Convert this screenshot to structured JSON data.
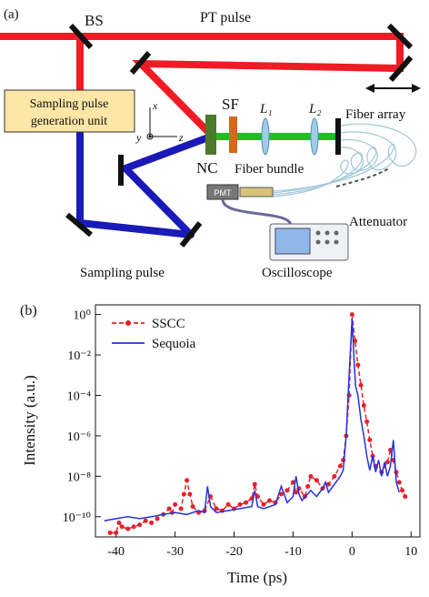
{
  "diagram": {
    "panel_label": "(a)",
    "beam_splitter": "BS",
    "pt_pulse": "PT pulse",
    "generation_unit": [
      "Sampling pulse",
      "generation unit"
    ],
    "axis_x": "x",
    "axis_y": "y",
    "axis_z": "z",
    "sf": "SF",
    "lens_1": "L₁",
    "lens_2": "L₂",
    "fiber_array": "Fiber array",
    "nc": "NC",
    "fiber_bundle": "Fiber bundle",
    "pmt": "PMT",
    "attenuator": "Attenuator",
    "oscilloscope": "Oscilloscope",
    "sampling_pulse": "Sampling pulse"
  },
  "chart_data": {
    "type": "line",
    "panel_label": "(b)",
    "x_label": "Time (ps)",
    "y_label": "Intensity (a.u.)",
    "y_scale": "log",
    "legend": "upper left",
    "xlim": [
      -43.5,
      11.5
    ],
    "xticks": [
      -40,
      -30,
      -20,
      -10,
      0,
      10
    ],
    "ylim": [
      1e-11,
      3
    ],
    "yticks": [
      {
        "value": 1,
        "label": "10⁰"
      },
      {
        "value": 0.01,
        "label": "10⁻²"
      },
      {
        "value": 0.0001,
        "label": "10⁻⁴"
      },
      {
        "value": 1e-06,
        "label": "10⁻⁶"
      },
      {
        "value": 1e-08,
        "label": "10⁻⁸"
      },
      {
        "value": 1e-10,
        "label": "10⁻¹⁰"
      }
    ],
    "series": [
      {
        "name": "SSCC",
        "color": "#e8202a",
        "line_style": "dashed",
        "marker": "circle",
        "x": [
          -41,
          -40,
          -39.5,
          -39,
          -38,
          -37,
          -36,
          -35,
          -34,
          -33,
          -32,
          -31,
          -30.5,
          -30,
          -29,
          -28.5,
          -28,
          -27.5,
          -27,
          -26,
          -25,
          -24,
          -23,
          -22,
          -21,
          -20,
          -19,
          -18,
          -17,
          -16.5,
          -16,
          -15,
          -14,
          -13,
          -12,
          -11,
          -10,
          -9.5,
          -9,
          -8,
          -7.5,
          -7,
          -6,
          -5,
          -4,
          -3,
          -2,
          -1.5,
          -1,
          -0.5,
          0,
          0.5,
          1,
          1.5,
          2,
          2.5,
          3,
          3.5,
          4,
          5,
          6,
          6.5,
          7,
          7.5,
          8,
          8.5,
          9
        ],
        "values": [
          1.6e-11,
          1.6e-11,
          5e-11,
          3.2e-11,
          2.5e-11,
          3.2e-11,
          4e-11,
          6.3e-11,
          5e-11,
          8e-11,
          1.3e-10,
          2.5e-10,
          1.6e-10,
          4e-10,
          2.5e-10,
          1.3e-09,
          6.3e-09,
          1.3e-09,
          3.2e-10,
          1.6e-10,
          2e-10,
          1e-09,
          2.5e-10,
          2e-10,
          4e-10,
          2.5e-10,
          4e-10,
          5e-10,
          8e-10,
          4e-09,
          1e-09,
          4e-10,
          6.3e-10,
          5e-10,
          1.3e-09,
          2e-09,
          5e-09,
          1.6e-09,
          2.5e-09,
          1e-09,
          3.2e-09,
          1e-08,
          6.3e-09,
          2.5e-09,
          4e-09,
          1e-08,
          3.2e-08,
          6.3e-08,
          1e-06,
          0.0001,
          1,
          0.05,
          0.0032,
          0.00032,
          3.2e-05,
          5e-06,
          6.3e-07,
          1e-07,
          3.2e-08,
          1.6e-08,
          5e-08,
          2e-07,
          6.3e-08,
          1.6e-08,
          5e-09,
          2e-09,
          1e-09
        ]
      },
      {
        "name": "Sequoia",
        "color": "#2233dd",
        "line_style": "solid",
        "x": [
          -42,
          -40,
          -38,
          -36,
          -34,
          -32,
          -30,
          -28,
          -26,
          -25,
          -24.5,
          -24,
          -23,
          -21,
          -19,
          -17,
          -16.5,
          -16,
          -15,
          -13,
          -12,
          -11,
          -10,
          -9.5,
          -9,
          -8.5,
          -7,
          -6,
          -5,
          -4.5,
          -4,
          -3,
          -2,
          -1.5,
          -1,
          -0.5,
          0,
          0.3,
          0.6,
          1,
          1.5,
          2,
          2.5,
          3,
          3.5,
          4,
          4.5,
          5,
          5.5,
          6,
          6.5,
          7,
          7.5,
          8
        ],
        "values": [
          6.3e-11,
          8e-11,
          1e-10,
          8e-11,
          1e-10,
          1.3e-10,
          1.6e-10,
          1.3e-10,
          2e-10,
          1.6e-10,
          3.2e-09,
          3.2e-10,
          1.6e-10,
          2e-10,
          2.5e-10,
          3.2e-10,
          2e-09,
          3.2e-10,
          2.5e-10,
          4e-10,
          3.2e-09,
          5e-10,
          1e-09,
          1e-08,
          1.3e-09,
          6.3e-10,
          2e-09,
          1e-09,
          2.5e-09,
          5e-09,
          1.6e-09,
          4e-09,
          1e-08,
          2e-08,
          1e-06,
          0.001,
          0.63,
          0.01,
          0.0003,
          0.0001,
          6.3e-06,
          1e-06,
          1e-07,
          2e-08,
          1e-07,
          1.6e-08,
          6.3e-08,
          1e-08,
          5e-08,
          1e-08,
          3.2e-08,
          6.3e-07,
          5e-09,
          1.6e-09
        ]
      }
    ]
  }
}
